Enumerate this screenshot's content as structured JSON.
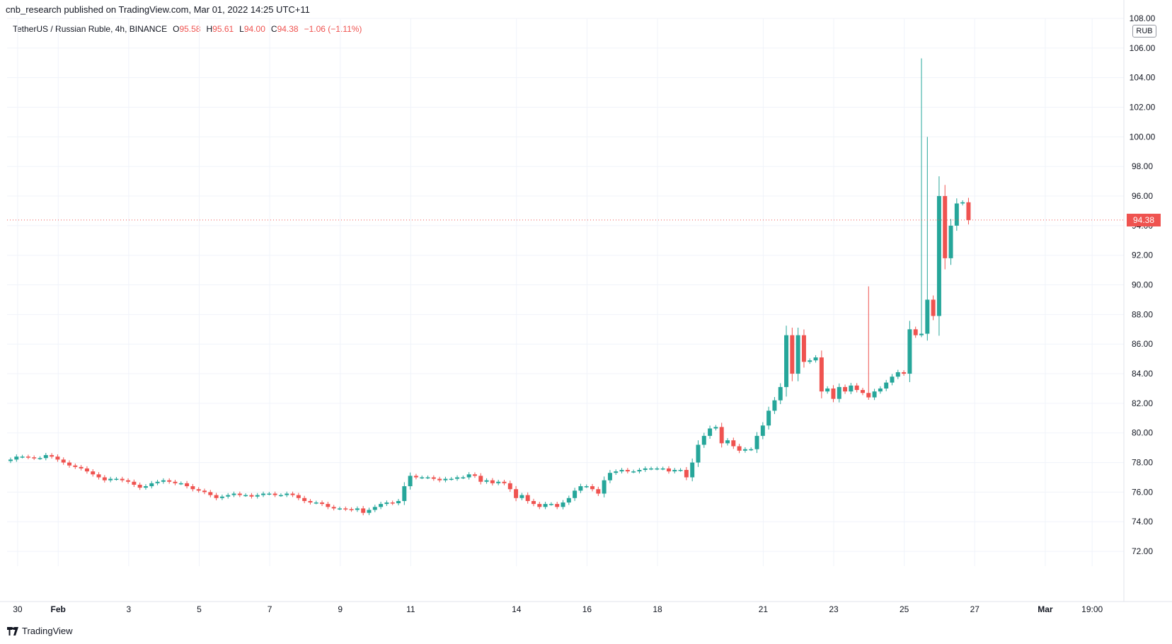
{
  "header": {
    "published": "cnb_research published on TradingView.com, Mar 01, 2022 14:25 UTC+11"
  },
  "legend": {
    "title": "TetherUS / Russian Ruble, 4h, BINANCE",
    "o_label": "O",
    "o_value": "95.58",
    "h_label": "H",
    "h_value": "95.61",
    "l_label": "L",
    "l_value": "94.00",
    "c_label": "C",
    "c_value": "94.38",
    "change": "−1.06 (−1.11%)"
  },
  "price_axis": {
    "currency": "RUB",
    "last_price": "94.38"
  },
  "footer": {
    "brand": "TradingView"
  },
  "colors": {
    "up": "#26a69a",
    "down": "#ef5350",
    "grid": "#f0f3fa",
    "text": "#131722"
  },
  "chart_data": {
    "type": "candlestick",
    "title": "TetherUS / Russian Ruble, 4h, BINANCE",
    "ylim": [
      71,
      108
    ],
    "y_ticks": [
      "72.00",
      "74.00",
      "76.00",
      "78.00",
      "80.00",
      "82.00",
      "84.00",
      "86.00",
      "88.00",
      "90.00",
      "92.00",
      "94.00",
      "96.00",
      "98.00",
      "100.00",
      "102.00",
      "104.00",
      "106.00",
      "108.00"
    ],
    "x_ticks": [
      {
        "label": "30",
        "day": -0.15
      },
      {
        "label": "Feb",
        "day": 1
      },
      {
        "label": "3",
        "day": 3
      },
      {
        "label": "5",
        "day": 5
      },
      {
        "label": "7",
        "day": 7
      },
      {
        "label": "9",
        "day": 9
      },
      {
        "label": "11",
        "day": 11
      },
      {
        "label": "14",
        "day": 14
      },
      {
        "label": "16",
        "day": 16
      },
      {
        "label": "18",
        "day": 18
      },
      {
        "label": "21",
        "day": 21
      },
      {
        "label": "23",
        "day": 23
      },
      {
        "label": "25",
        "day": 25
      },
      {
        "label": "27",
        "day": 27
      },
      {
        "label": "Mar",
        "day": 29
      },
      {
        "label": "19:00",
        "day": 30.33
      }
    ],
    "x_domain_days": [
      -0.45,
      31.23
    ],
    "start_day": -0.35,
    "bar_days": 0.1667,
    "last_price": 94.38,
    "close_levels": [
      78.2,
      78.4,
      78.4,
      78.35,
      78.3,
      78.3,
      78.5,
      78.4,
      78.2,
      78.0,
      77.8,
      77.7,
      77.6,
      77.4,
      77.2,
      77.0,
      76.8,
      76.9,
      76.9,
      76.8,
      76.7,
      76.5,
      76.3,
      76.4,
      76.6,
      76.7,
      76.8,
      76.7,
      76.6,
      76.6,
      76.4,
      76.2,
      76.1,
      76.0,
      75.8,
      75.6,
      75.7,
      75.8,
      75.9,
      75.8,
      75.8,
      75.7,
      75.8,
      75.9,
      75.9,
      75.8,
      75.8,
      75.9,
      75.8,
      75.6,
      75.4,
      75.3,
      75.3,
      75.2,
      75.0,
      74.9,
      74.9,
      74.85,
      74.8,
      74.9,
      74.6,
      74.8,
      75.0,
      75.2,
      75.3,
      75.25,
      75.4,
      76.4,
      77.1,
      77.0,
      77.0,
      77.0,
      76.9,
      76.8,
      76.9,
      76.9,
      77.0,
      77.0,
      77.2,
      77.1,
      76.7,
      76.8,
      76.6,
      76.7,
      76.6,
      76.2,
      75.6,
      75.8,
      75.4,
      75.2,
      75.0,
      75.2,
      75.2,
      75.0,
      75.3,
      75.6,
      76.1,
      76.4,
      76.4,
      76.2,
      75.9,
      76.8,
      77.3,
      77.4,
      77.5,
      77.4,
      77.4,
      77.5,
      77.6,
      77.6,
      77.6,
      77.6,
      77.4,
      77.5,
      77.5,
      77.0,
      78.0,
      79.2,
      79.8,
      80.3,
      80.4,
      79.3,
      79.5,
      79.1,
      78.8,
      78.9,
      78.9,
      79.8,
      80.5,
      81.5,
      82.2,
      83.1,
      86.6,
      84.0,
      86.6,
      84.8,
      84.9,
      85.1,
      82.8,
      83.0,
      82.3,
      83.1,
      82.8,
      83.2,
      82.9,
      82.7,
      82.4,
      82.8,
      83.0,
      83.4,
      83.8,
      84.1,
      84.0,
      87.0,
      86.6,
      86.7,
      89.0,
      87.9,
      96.0,
      91.8,
      94.0,
      95.5,
      95.58,
      94.38
    ]
  }
}
